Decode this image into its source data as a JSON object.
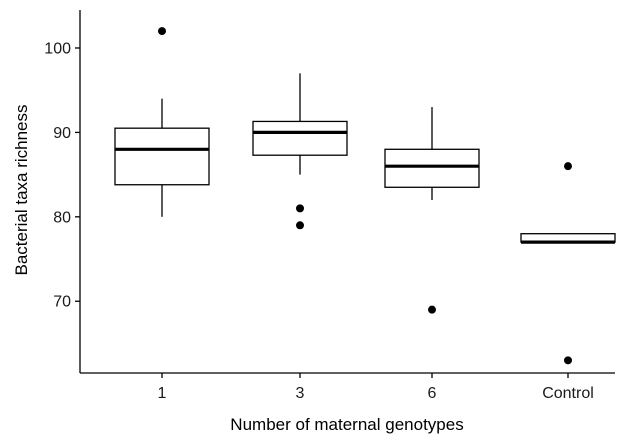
{
  "chart_data": {
    "type": "boxplot",
    "title": "",
    "xlabel": "Number of maternal genotypes",
    "ylabel": "Bacterial taxa richness",
    "categories": [
      "1",
      "3",
      "6",
      "Control"
    ],
    "ylim": [
      61.5,
      104.5
    ],
    "yticks": [
      70,
      80,
      90,
      100
    ],
    "grid": false,
    "legend": "none",
    "boxes": [
      {
        "category": "1",
        "whisker_low": 80,
        "q1": 83.8,
        "median": 88,
        "q3": 90.5,
        "whisker_high": 94,
        "outliers": [
          102
        ]
      },
      {
        "category": "3",
        "whisker_low": 85,
        "q1": 87.3,
        "median": 90,
        "q3": 91.3,
        "whisker_high": 97,
        "outliers": [
          81,
          79
        ]
      },
      {
        "category": "6",
        "whisker_low": 82,
        "q1": 83.5,
        "median": 86,
        "q3": 88,
        "whisker_high": 93,
        "outliers": [
          69
        ]
      },
      {
        "category": "Control",
        "whisker_low": 77,
        "q1": 77,
        "median": 77,
        "q3": 78,
        "whisker_high": 78,
        "outliers": [
          86,
          63
        ]
      }
    ]
  }
}
